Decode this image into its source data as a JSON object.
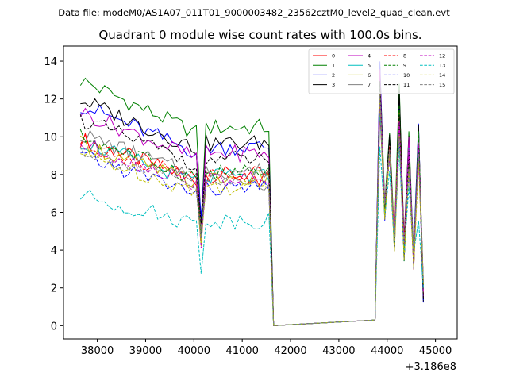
{
  "suptitle": "Data file: modeM0/AS1A07_011T01_9000003482_23562cztM0_level2_quad_clean.evt",
  "chart_data": {
    "type": "line",
    "title": "Quadrant 0 module wise count rates with 100.0s bins.",
    "xlabel": "",
    "ylabel": "",
    "x_offset_label": "+3.186e8",
    "xlim": [
      37300,
      45450
    ],
    "ylim": [
      -0.7,
      14.8
    ],
    "xticks": [
      38000,
      39000,
      40000,
      41000,
      42000,
      43000,
      44000,
      45000
    ],
    "xtick_labels": [
      "38000",
      "39000",
      "40000",
      "41000",
      "42000",
      "43000",
      "44000",
      "45000"
    ],
    "yticks": [
      0,
      2,
      4,
      6,
      8,
      10,
      12,
      14
    ],
    "ytick_labels": [
      "0",
      "2",
      "4",
      "6",
      "8",
      "10",
      "12",
      "14"
    ],
    "legend_position": "top-right",
    "x": {
      "segment_a": {
        "start": 37650,
        "stop": 41650,
        "step": 100
      },
      "segment_b": {
        "start": 43750,
        "stop": 45050,
        "step": 100
      }
    },
    "gap_value": 0,
    "series": [
      {
        "name": "0",
        "color": "#ff0000",
        "dash": false,
        "plateau": 7.6,
        "drop": 4.6,
        "peaks": [
          12.1,
          9.5,
          11.5,
          9.5,
          10.0
        ]
      },
      {
        "name": "1",
        "color": "#008000",
        "dash": false,
        "plateau": 10.0,
        "drop": 5.6,
        "peaks": [
          14.1,
          9.8,
          12.5,
          9.8,
          10.0
        ]
      },
      {
        "name": "2",
        "color": "#0000ff",
        "dash": false,
        "plateau": 9.0,
        "drop": 5.4,
        "peaks": [
          13.3,
          9.6,
          11.5,
          9.4,
          10.4
        ]
      },
      {
        "name": "3",
        "color": "#000000",
        "dash": false,
        "plateau": 9.2,
        "drop": 5.2,
        "peaks": [
          13.4,
          9.7,
          12.0,
          9.7,
          10.3
        ]
      },
      {
        "name": "4",
        "color": "#bf00bf",
        "dash": false,
        "plateau": 8.7,
        "drop": 5.1,
        "peaks": [
          12.9,
          9.5,
          11.2,
          9.6,
          9.9
        ]
      },
      {
        "name": "5",
        "color": "#00bfbf",
        "dash": false,
        "plateau": 7.5,
        "drop": 4.5,
        "peaks": [
          12.0,
          9.3,
          10.6,
          8.9,
          9.7
        ]
      },
      {
        "name": "6",
        "color": "#bfbf00",
        "dash": false,
        "plateau": 7.4,
        "drop": 4.6,
        "peaks": [
          12.0,
          9.2,
          10.8,
          8.8,
          9.3
        ]
      },
      {
        "name": "7",
        "color": "#808080",
        "dash": false,
        "plateau": 7.8,
        "drop": 4.8,
        "peaks": [
          12.5,
          9.4,
          11.1,
          9.2,
          9.8
        ]
      },
      {
        "name": "8",
        "color": "#ff0000",
        "dash": true,
        "plateau": 7.5,
        "drop": 4.4,
        "peaks": [
          11.8,
          9.3,
          11.0,
          9.0,
          9.6
        ]
      },
      {
        "name": "9",
        "color": "#008000",
        "dash": true,
        "plateau": 7.7,
        "drop": 4.6,
        "peaks": [
          12.2,
          9.4,
          11.2,
          9.1,
          9.8
        ]
      },
      {
        "name": "10",
        "color": "#0000ff",
        "dash": true,
        "plateau": 6.9,
        "drop": 4.3,
        "peaks": [
          11.5,
          8.8,
          10.3,
          8.4,
          9.1
        ]
      },
      {
        "name": "11",
        "color": "#000000",
        "dash": true,
        "plateau": 8.4,
        "drop": 5.0,
        "peaks": [
          12.8,
          9.5,
          11.6,
          9.3,
          10.0
        ]
      },
      {
        "name": "12",
        "color": "#bf00bf",
        "dash": true,
        "plateau": 7.4,
        "drop": 4.5,
        "peaks": [
          12.0,
          9.2,
          10.7,
          8.9,
          9.5
        ]
      },
      {
        "name": "13",
        "color": "#00bfbf",
        "dash": true,
        "plateau": 5.3,
        "drop": 3.1,
        "peaks": [
          10.0,
          8.0,
          8.9,
          7.6,
          5.8
        ]
      },
      {
        "name": "14",
        "color": "#bfbf00",
        "dash": true,
        "plateau": 7.0,
        "drop": 4.3,
        "peaks": [
          11.6,
          8.9,
          10.4,
          8.5,
          9.0
        ]
      },
      {
        "name": "15",
        "color": "#808080",
        "dash": true,
        "plateau": 7.2,
        "drop": 4.4,
        "peaks": [
          11.8,
          9.0,
          10.6,
          8.7,
          9.2
        ]
      }
    ]
  }
}
